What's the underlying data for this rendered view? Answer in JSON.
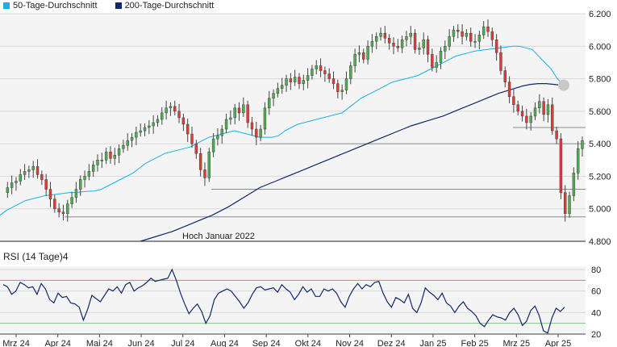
{
  "legend": {
    "sma50": {
      "label": "50-Tage-Durchschnitt",
      "color": "#1ab0e8"
    },
    "sma200": {
      "label": "200-Tage-Durchschnitt",
      "color": "#10286a"
    }
  },
  "annotations": {
    "support_label": "Hoch Januar 2022"
  },
  "rsi_title": "RSI (14 Tage)4",
  "chart_data": [
    {
      "type": "candlestick",
      "ylim": [
        4800,
        6200
      ],
      "yticks": [
        "4.800",
        "5.000",
        "5.200",
        "5.400",
        "5.600",
        "5.800",
        "6.000",
        "6.200"
      ],
      "xlabels": [
        "Mrz 24",
        "Apr 24",
        "Mai 24",
        "Jun 24",
        "Jul 24",
        "Aug 24",
        "Sep 24",
        "Okt 24",
        "Nov 24",
        "Dez 24",
        "Jan 25",
        "Feb 25",
        "Mrz 25",
        "Apr 25"
      ],
      "closes": [
        5100,
        5130,
        5160,
        5170,
        5210,
        5230,
        5240,
        5260,
        5210,
        5180,
        5120,
        5060,
        5000,
        4980,
        4970,
        5030,
        5070,
        5120,
        5180,
        5200,
        5230,
        5270,
        5300,
        5300,
        5350,
        5310,
        5330,
        5370,
        5390,
        5420,
        5440,
        5470,
        5480,
        5500,
        5510,
        5530,
        5550,
        5590,
        5620,
        5630,
        5600,
        5560,
        5520,
        5460,
        5400,
        5340,
        5240,
        5190,
        5350,
        5430,
        5450,
        5490,
        5550,
        5560,
        5620,
        5590,
        5640,
        5530,
        5490,
        5440,
        5490,
        5620,
        5680,
        5710,
        5740,
        5760,
        5800,
        5780,
        5810,
        5770,
        5790,
        5820,
        5860,
        5880,
        5850,
        5830,
        5800,
        5770,
        5720,
        5730,
        5800,
        5880,
        5950,
        5960,
        5920,
        6000,
        6030,
        6060,
        6080,
        6050,
        6020,
        6000,
        5990,
        6040,
        6060,
        6080,
        5980,
        5990,
        6040,
        5950,
        5870,
        5900,
        5970,
        6000,
        6060,
        6100,
        6090,
        6060,
        6080,
        6030,
        6030,
        6070,
        6120,
        6090,
        6040,
        5960,
        5850,
        5780,
        5690,
        5640,
        5600,
        5570,
        5530,
        5570,
        5620,
        5660,
        5580,
        5640,
        5480,
        5430,
        5100,
        4970,
        5080,
        5220,
        5370,
        5420
      ],
      "sma50": [
        4960,
        4990,
        5010,
        5030,
        5050,
        5060,
        5070,
        5080,
        5085,
        5090,
        5095,
        5100,
        5100,
        5105,
        5108,
        5110,
        5120,
        5140,
        5160,
        5180,
        5200,
        5220,
        5250,
        5280,
        5300,
        5320,
        5340,
        5350,
        5360,
        5370,
        5380,
        5400,
        5420,
        5440,
        5450,
        5460,
        5470,
        5480,
        5470,
        5460,
        5450,
        5440,
        5440,
        5440,
        5450,
        5480,
        5500,
        5520,
        5530,
        5540,
        5550,
        5560,
        5570,
        5580,
        5590,
        5620,
        5650,
        5680,
        5700,
        5720,
        5740,
        5760,
        5780,
        5790,
        5800,
        5810,
        5820,
        5840,
        5860,
        5880,
        5900,
        5920,
        5940,
        5950,
        5960,
        5970,
        5975,
        5980,
        5985,
        5990,
        5995,
        6000,
        6000,
        5990,
        5980,
        5940,
        5900,
        5860,
        5800,
        5760
      ],
      "sma200": [
        4800,
        4815,
        4830,
        4845,
        4860,
        4880,
        4900,
        4920,
        4940,
        4960,
        4985,
        5010,
        5040,
        5070,
        5100,
        5130,
        5150,
        5170,
        5190,
        5210,
        5230,
        5250,
        5270,
        5290,
        5310,
        5330,
        5350,
        5370,
        5390,
        5410,
        5430,
        5450,
        5470,
        5490,
        5510,
        5525,
        5540,
        5555,
        5570,
        5590,
        5610,
        5630,
        5650,
        5670,
        5690,
        5710,
        5725,
        5740,
        5755,
        5765,
        5770,
        5770,
        5765,
        5760
      ],
      "hlines": [
        5500,
        5400,
        5120,
        4950
      ]
    },
    {
      "type": "line",
      "title": "RSI (14 Tage)4",
      "ylim": [
        20,
        80
      ],
      "yticks": [
        20,
        40,
        60,
        80
      ],
      "bands": {
        "upper": 70,
        "lower": 30
      },
      "values": [
        66,
        64,
        57,
        60,
        68,
        66,
        63,
        64,
        57,
        67,
        62,
        52,
        49,
        58,
        54,
        55,
        49,
        48,
        45,
        33,
        43,
        56,
        53,
        50,
        56,
        62,
        60,
        64,
        58,
        66,
        68,
        60,
        63,
        65,
        68,
        72,
        69,
        70,
        71,
        72,
        80,
        70,
        58,
        48,
        39,
        44,
        48,
        41,
        30,
        37,
        52,
        58,
        60,
        62,
        60,
        55,
        50,
        44,
        49,
        57,
        63,
        64,
        61,
        62,
        63,
        59,
        66,
        62,
        59,
        52,
        57,
        64,
        59,
        62,
        55,
        55,
        62,
        60,
        62,
        58,
        50,
        45,
        55,
        62,
        67,
        62,
        66,
        64,
        68,
        69,
        58,
        50,
        45,
        54,
        52,
        49,
        57,
        44,
        40,
        49,
        63,
        59,
        56,
        52,
        58,
        49,
        46,
        40,
        46,
        50,
        44,
        41,
        37,
        30,
        27,
        33,
        38,
        36,
        35,
        33,
        40,
        44,
        38,
        28,
        32,
        42,
        46,
        37,
        23,
        21,
        35,
        44,
        41,
        45
      ]
    }
  ]
}
